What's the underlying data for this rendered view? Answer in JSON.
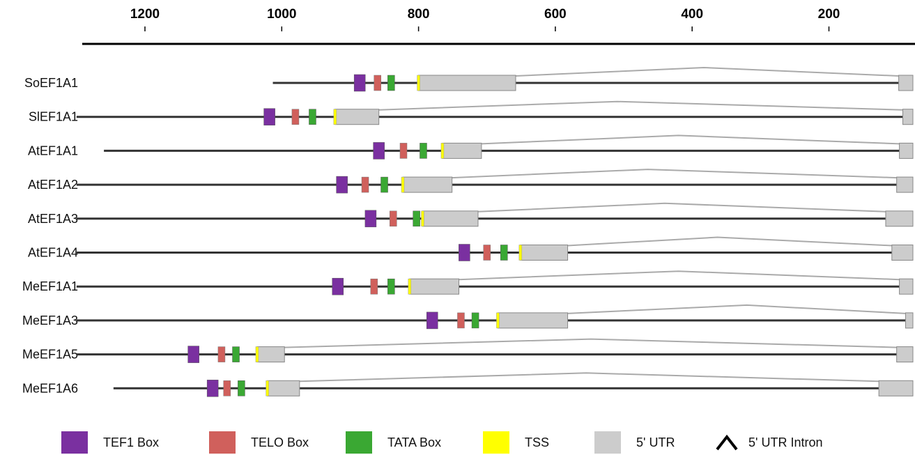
{
  "axis": {
    "ticks": [
      "1200",
      "1000",
      "800",
      "600",
      "400",
      "200"
    ],
    "tick_values": [
      1200,
      1000,
      800,
      600,
      400,
      200
    ],
    "range": [
      1400,
      86
    ],
    "orientation": "reversed"
  },
  "colors": {
    "tef1": "#7a30a0",
    "telo": "#d0605c",
    "tata": "#3aa833",
    "tss": "#ffff00",
    "utr": "#cccccc",
    "utr_stroke": "#888888",
    "intron": "#aaaaaa",
    "line": "#333333"
  },
  "genes": [
    {
      "name": "SoEF1A1",
      "start": 1013,
      "tef1": 886,
      "telo": 860,
      "tata": 840,
      "tss": 800,
      "utr1_end": 658,
      "intron_peak": 383,
      "utr2_start": 98
    },
    {
      "name": "SlEF1A1",
      "start": 1300,
      "tef1": 1018,
      "telo": 980,
      "tata": 955,
      "tss": 922,
      "utr1_end": 858,
      "intron_peak": 510,
      "utr2_start": 92
    },
    {
      "name": "AtEF1A1",
      "start": 1260,
      "tef1": 858,
      "telo": 822,
      "tata": 793,
      "tss": 765,
      "utr1_end": 708,
      "intron_peak": 420,
      "utr2_start": 97
    },
    {
      "name": "AtEF1A2",
      "start": 1300,
      "tef1": 912,
      "telo": 878,
      "tata": 850,
      "tss": 823,
      "utr1_end": 751,
      "intron_peak": 465,
      "utr2_start": 101
    },
    {
      "name": "AtEF1A3",
      "start": 1300,
      "tef1": 870,
      "telo": 837,
      "tata": 803,
      "tss": 794,
      "utr1_end": 713,
      "intron_peak": 440,
      "utr2_start": 117
    },
    {
      "name": "AtEF1A4",
      "start": 1300,
      "tef1": 733,
      "telo": 700,
      "tata": 675,
      "tss": 651,
      "utr1_end": 582,
      "intron_peak": 363,
      "utr2_start": 108
    },
    {
      "name": "MeEF1A1",
      "start": 1300,
      "tef1": 918,
      "telo": 865,
      "tata": 840,
      "tss": 813,
      "utr1_end": 741,
      "intron_peak": 420,
      "utr2_start": 97
    },
    {
      "name": "MeEF1A3",
      "start": 1300,
      "tef1": 780,
      "telo": 738,
      "tata": 717,
      "tss": 684,
      "utr1_end": 582,
      "intron_peak": 320,
      "utr2_start": 88
    },
    {
      "name": "MeEF1A5",
      "start": 1300,
      "tef1": 1129,
      "telo": 1088,
      "tata": 1067,
      "tss": 1036,
      "utr1_end": 996,
      "intron_peak": 548,
      "utr2_start": 101
    },
    {
      "name": "MeEF1A6",
      "start": 1246,
      "tef1": 1101,
      "telo": 1080,
      "tata": 1059,
      "tss": 1021,
      "utr1_end": 974,
      "intron_peak": 555,
      "utr2_start": 127
    }
  ],
  "legend": [
    {
      "label": "TEF1 Box",
      "kind": "tef1"
    },
    {
      "label": "TELO Box",
      "kind": "telo"
    },
    {
      "label": "TATA Box",
      "kind": "tata"
    },
    {
      "label": "TSS",
      "kind": "tss"
    },
    {
      "label": "5' UTR",
      "kind": "utr"
    },
    {
      "label": "5' UTR Intron",
      "kind": "intron",
      "icon": "chevron-up-icon"
    }
  ]
}
